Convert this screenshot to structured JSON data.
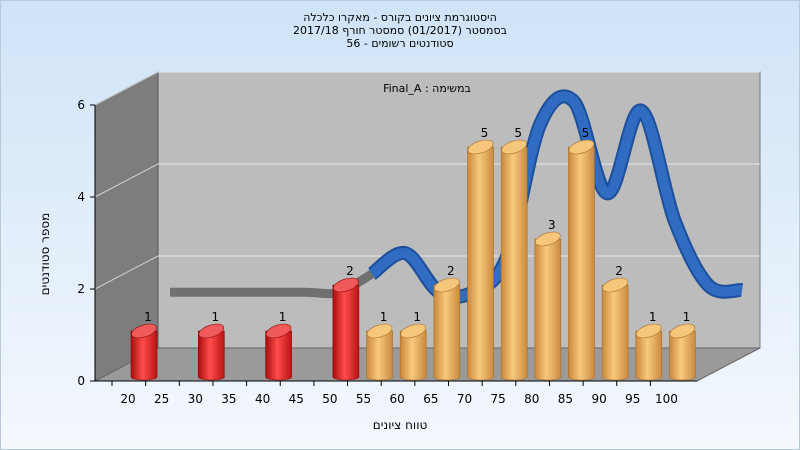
{
  "chart_data": {
    "type": "bar",
    "title_lines": [
      "היסטוגרמת ציונים בקורס - מאקרו כלכלה",
      "בסמסטר  (01/2017)  סמסטר חורף 2017/18",
      "סטודנטים רשומים - 56"
    ],
    "assignment_label": "במשימה : Final_A",
    "xlabel": "טווח ציונים",
    "ylabel": "מספר סטודנטים",
    "ylim": [
      0,
      6
    ],
    "yticks": [
      "0",
      "2",
      "4",
      "6"
    ],
    "xticks": [
      "20",
      "25",
      "30",
      "35",
      "40",
      "45",
      "50",
      "55",
      "60",
      "65",
      "70",
      "75",
      "80",
      "85",
      "90",
      "95",
      "100"
    ],
    "bars": [
      {
        "x": 20,
        "value": 1,
        "label": "1",
        "color": "#e42626"
      },
      {
        "x": 30,
        "value": 1,
        "label": "1",
        "color": "#e42626"
      },
      {
        "x": 40,
        "value": 1,
        "label": "1",
        "color": "#e42626"
      },
      {
        "x": 50,
        "value": 2,
        "label": "2",
        "color": "#e42626"
      },
      {
        "x": 55,
        "value": 1,
        "label": "1",
        "color": "#e3a54f"
      },
      {
        "x": 60,
        "value": 1,
        "label": "1",
        "color": "#e3a54f"
      },
      {
        "x": 65,
        "value": 2,
        "label": "2",
        "color": "#e3a54f"
      },
      {
        "x": 70,
        "value": 5,
        "label": "5",
        "color": "#e3a54f"
      },
      {
        "x": 75,
        "value": 5,
        "label": "5",
        "color": "#e3a54f"
      },
      {
        "x": 80,
        "value": 3,
        "label": "3",
        "color": "#e3a54f"
      },
      {
        "x": 85,
        "value": 5,
        "label": "5",
        "color": "#e3a54f"
      },
      {
        "x": 90,
        "value": 2,
        "label": "2",
        "color": "#e3a54f"
      },
      {
        "x": 95,
        "value": 1,
        "label": "1",
        "color": "#e3a54f"
      },
      {
        "x": 100,
        "value": 1,
        "label": "1",
        "color": "#e3a54f"
      }
    ],
    "curve": {
      "color_flat": "#707070",
      "color_main": "#2f6cc2",
      "points": [
        {
          "x": 20,
          "y": 1.45
        },
        {
          "x": 30,
          "y": 1.45
        },
        {
          "x": 40,
          "y": 1.45
        },
        {
          "x": 45,
          "y": 1.45
        },
        {
          "x": 50,
          "y": 1.85
        },
        {
          "x": 55,
          "y": 2.3
        },
        {
          "x": 60,
          "y": 1.45
        },
        {
          "x": 65,
          "y": 1.45
        },
        {
          "x": 70,
          "y": 2.2
        },
        {
          "x": 75,
          "y": 5.1
        },
        {
          "x": 80,
          "y": 5.6
        },
        {
          "x": 85,
          "y": 3.6
        },
        {
          "x": 90,
          "y": 5.4
        },
        {
          "x": 95,
          "y": 3.0
        },
        {
          "x": 100,
          "y": 1.6
        },
        {
          "x": 105,
          "y": 1.5
        }
      ]
    }
  }
}
